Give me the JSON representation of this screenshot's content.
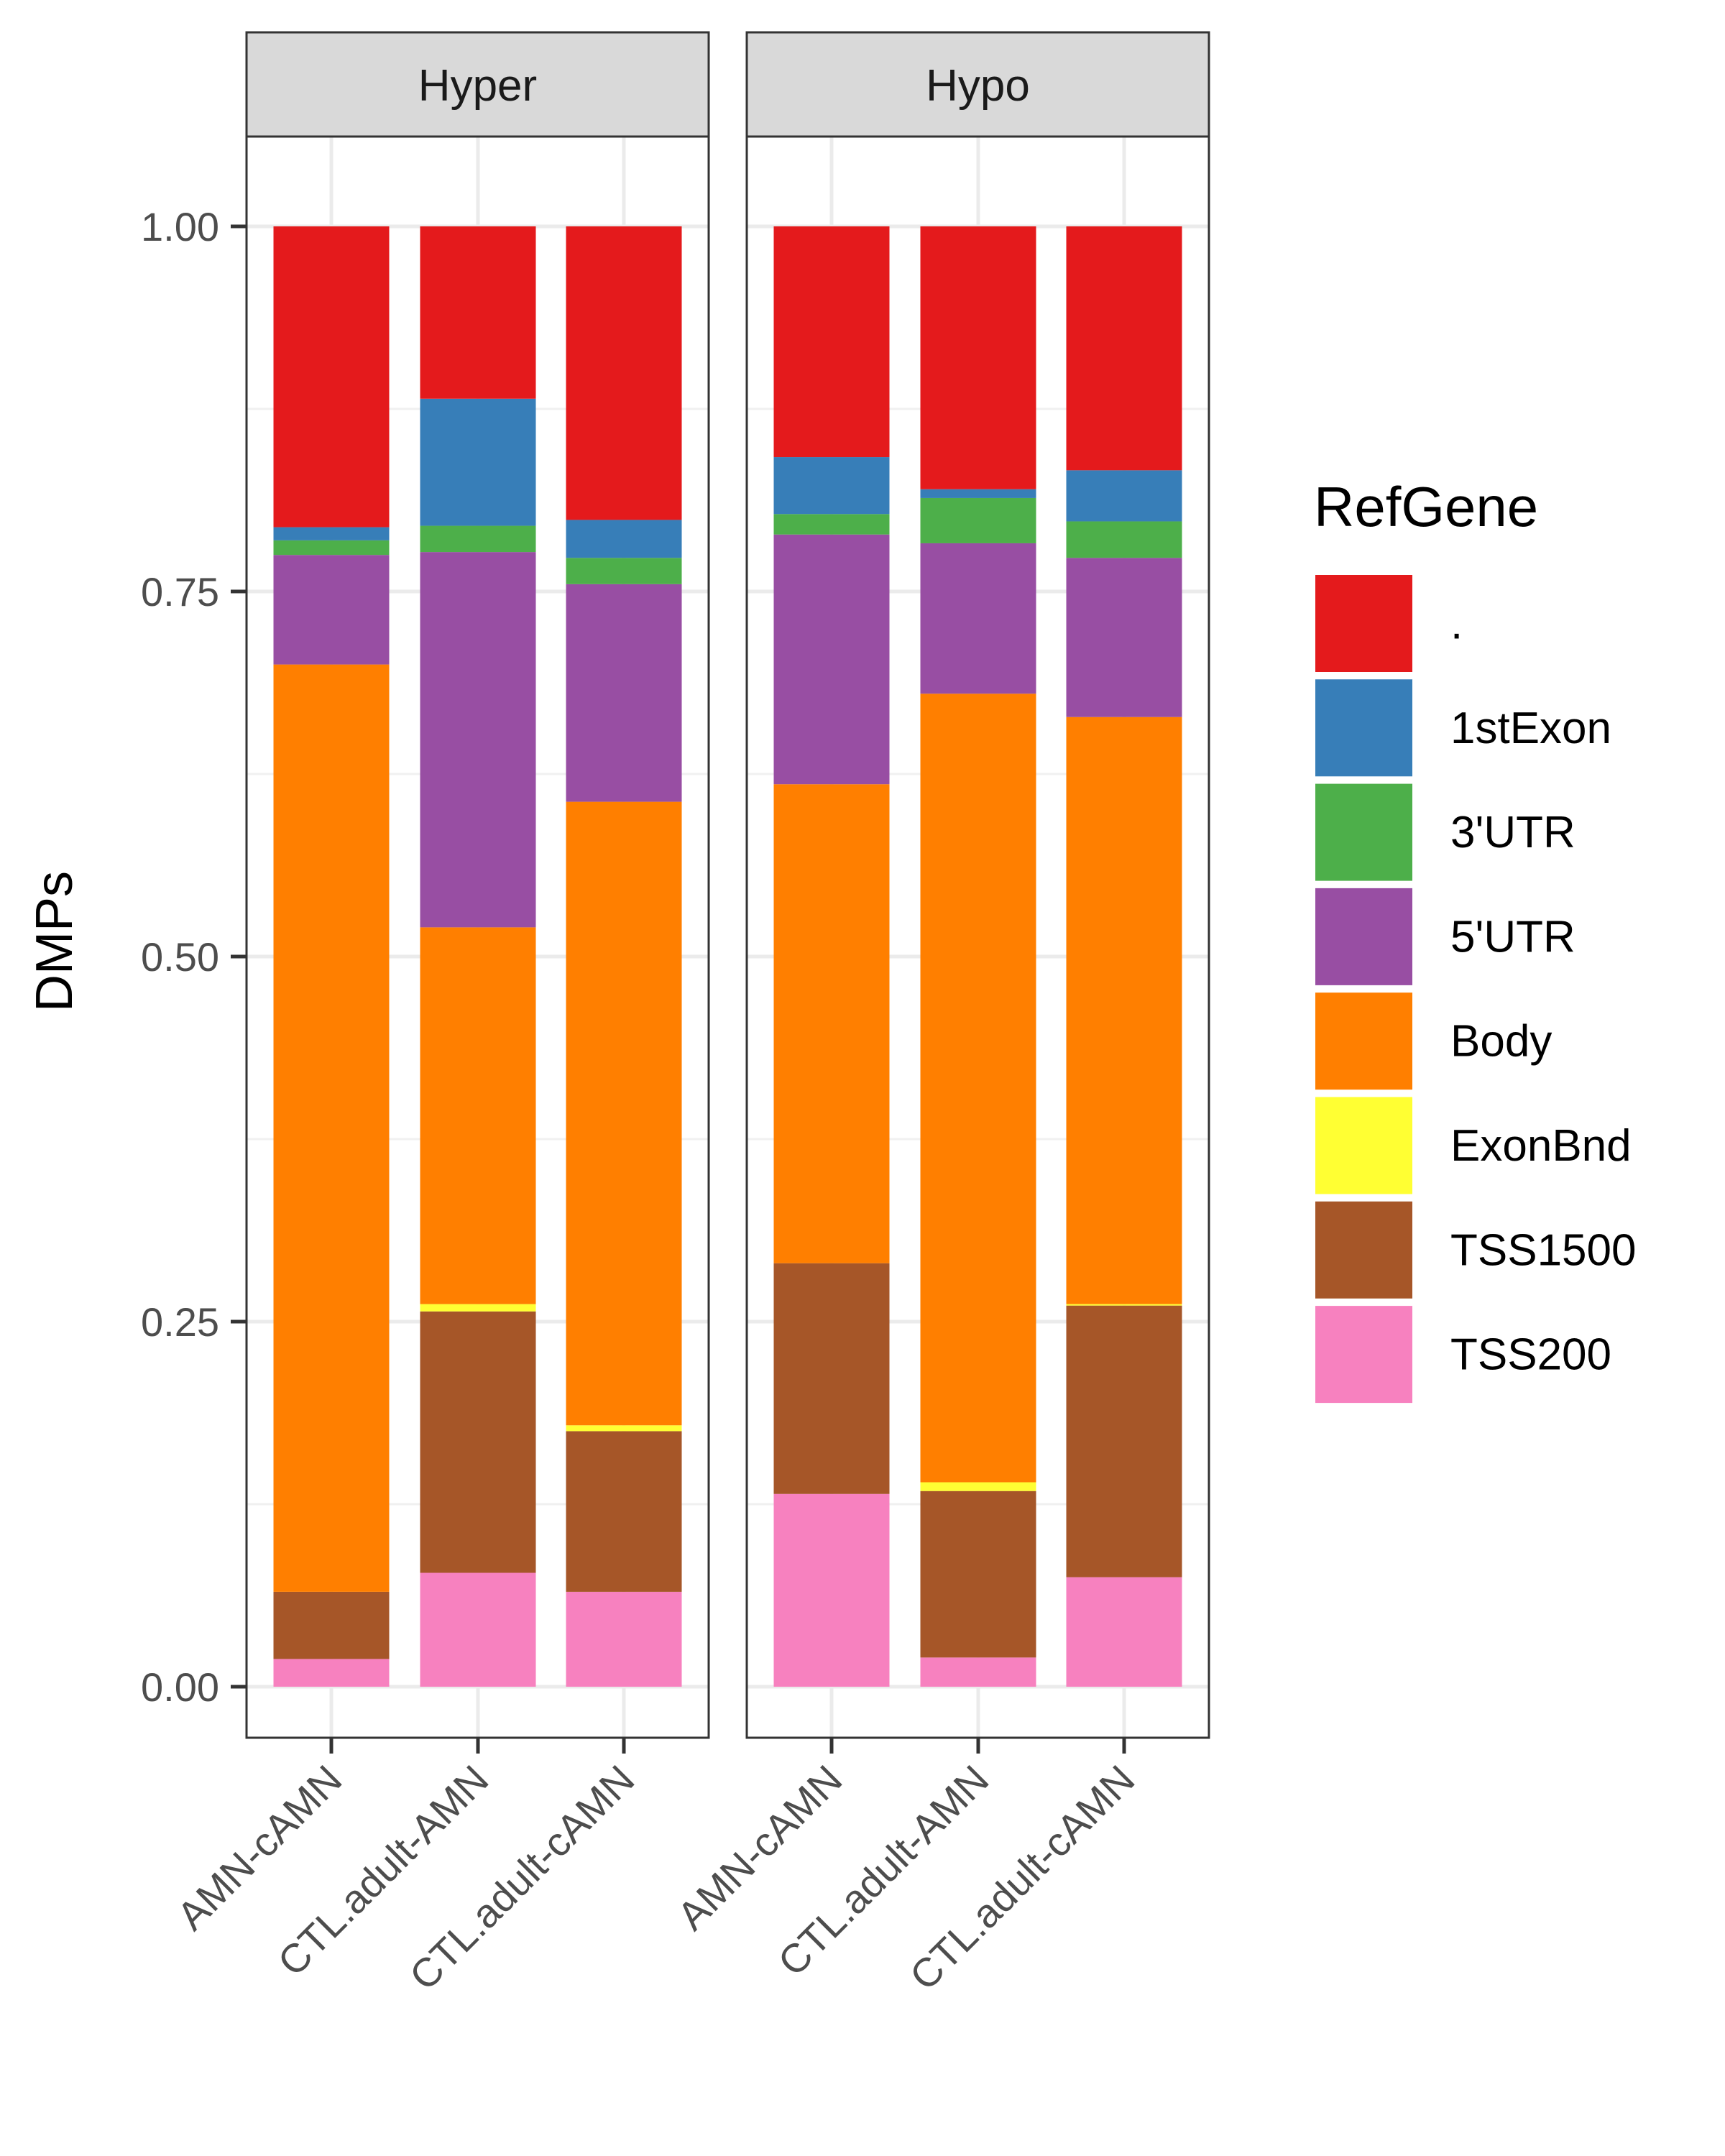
{
  "chart_data": {
    "type": "bar",
    "stacked": true,
    "ylabel": "DMPs",
    "xlabel": "",
    "ylim": [
      0,
      1
    ],
    "yticks": [
      "0.00",
      "0.25",
      "0.50",
      "0.75",
      "1.00"
    ],
    "grid": true,
    "legend": {
      "title": "RefGene",
      "position": "right",
      "entries": [
        {
          "name": ".",
          "color": "#E41A1C"
        },
        {
          "name": "1stExon",
          "color": "#377EB8"
        },
        {
          "name": "3'UTR",
          "color": "#4DAF4A"
        },
        {
          "name": "5'UTR",
          "color": "#984EA3"
        },
        {
          "name": "Body",
          "color": "#FF7F00"
        },
        {
          "name": "ExonBnd",
          "color": "#FFFF33"
        },
        {
          "name": "TSS1500",
          "color": "#A65628"
        },
        {
          "name": "TSS200",
          "color": "#F781BF"
        }
      ]
    },
    "stack_order_bottom_to_top": [
      "TSS200",
      "TSS1500",
      "ExonBnd",
      "Body",
      "5'UTR",
      "3'UTR",
      "1stExon",
      "."
    ],
    "categories": [
      "AMN-cAMN",
      "CTL.adult-AMN",
      "CTL.adult-cAMN"
    ],
    "panels": [
      {
        "title": "Hyper",
        "bars": [
          {
            "category": "AMN-cAMN",
            "values": {
              "TSS200": 0.019,
              "TSS1500": 0.046,
              "ExonBnd": 0.0,
              "Body": 0.635,
              "5'UTR": 0.075,
              "3'UTR": 0.01,
              "1stExon": 0.009,
              ".": 0.206
            }
          },
          {
            "category": "CTL.adult-AMN",
            "values": {
              "TSS200": 0.078,
              "TSS1500": 0.179,
              "ExonBnd": 0.005,
              "Body": 0.258,
              "5'UTR": 0.257,
              "3'UTR": 0.018,
              "1stExon": 0.087,
              ".": 0.118
            }
          },
          {
            "category": "CTL.adult-cAMN",
            "values": {
              "TSS200": 0.065,
              "TSS1500": 0.11,
              "ExonBnd": 0.004,
              "Body": 0.427,
              "5'UTR": 0.149,
              "3'UTR": 0.018,
              "1stExon": 0.026,
              ".": 0.201
            }
          }
        ]
      },
      {
        "title": "Hypo",
        "bars": [
          {
            "category": "AMN-cAMN",
            "values": {
              "TSS200": 0.132,
              "TSS1500": 0.158,
              "ExonBnd": 0.0,
              "Body": 0.328,
              "5'UTR": 0.171,
              "3'UTR": 0.014,
              "1stExon": 0.039,
              ".": 0.158
            }
          },
          {
            "category": "CTL.adult-AMN",
            "values": {
              "TSS200": 0.02,
              "TSS1500": 0.114,
              "ExonBnd": 0.006,
              "Body": 0.54,
              "5'UTR": 0.103,
              "3'UTR": 0.031,
              "1stExon": 0.006,
              ".": 0.18
            }
          },
          {
            "category": "CTL.adult-cAMN",
            "values": {
              "TSS200": 0.075,
              "TSS1500": 0.186,
              "ExonBnd": 0.001,
              "Body": 0.402,
              "5'UTR": 0.109,
              "3'UTR": 0.025,
              "1stExon": 0.035,
              ".": 0.167
            }
          }
        ]
      }
    ]
  }
}
